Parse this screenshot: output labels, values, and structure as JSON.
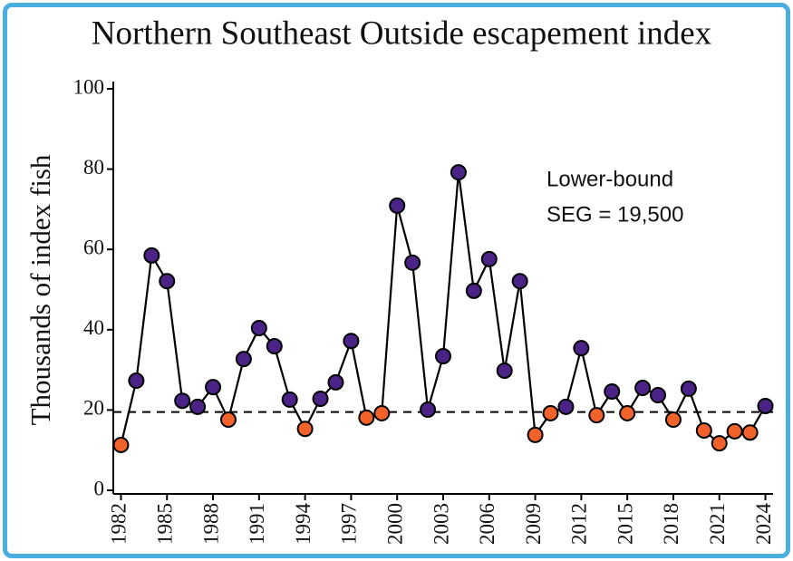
{
  "chart_data": {
    "type": "line",
    "title": "Northern Southeast Outside escapement index",
    "y_label": "Thousands of index fish",
    "x": [
      1982,
      1983,
      1984,
      1985,
      1986,
      1987,
      1988,
      1989,
      1990,
      1991,
      1992,
      1993,
      1994,
      1995,
      1996,
      1997,
      1998,
      1999,
      2000,
      2001,
      2002,
      2003,
      2004,
      2005,
      2006,
      2007,
      2008,
      2009,
      2010,
      2011,
      2012,
      2013,
      2014,
      2015,
      2016,
      2017,
      2018,
      2019,
      2020,
      2021,
      2022,
      2023,
      2024
    ],
    "values": [
      11.3,
      27.3,
      58.5,
      52.1,
      22.3,
      20.8,
      25.7,
      17.6,
      32.7,
      40.4,
      35.9,
      22.6,
      15.3,
      22.8,
      26.9,
      37.2,
      18.1,
      19.2,
      70.9,
      56.7,
      20.1,
      33.4,
      79.2,
      49.7,
      57.6,
      29.8,
      52.1,
      13.8,
      19.2,
      20.8,
      35.4,
      18.7,
      24.6,
      19.2,
      25.5,
      23.7,
      17.6,
      25.3,
      14.9,
      11.7,
      14.7,
      14.4,
      21.0
    ],
    "line_color": "#000000",
    "above_color": "#4b2386",
    "below_color": "#f0622a",
    "threshold": 19.5,
    "annotation": [
      "Lower-bound",
      "SEG = 19,500"
    ],
    "xlim": [
      1981.5,
      2024.5
    ],
    "xticks": [
      1982,
      1985,
      1988,
      1991,
      1994,
      1997,
      2000,
      2003,
      2006,
      2009,
      2012,
      2015,
      2018,
      2021,
      2024
    ],
    "ylim": [
      0,
      100
    ],
    "yticks": [
      0,
      20,
      40,
      60,
      80,
      100
    ],
    "grid": false
  }
}
